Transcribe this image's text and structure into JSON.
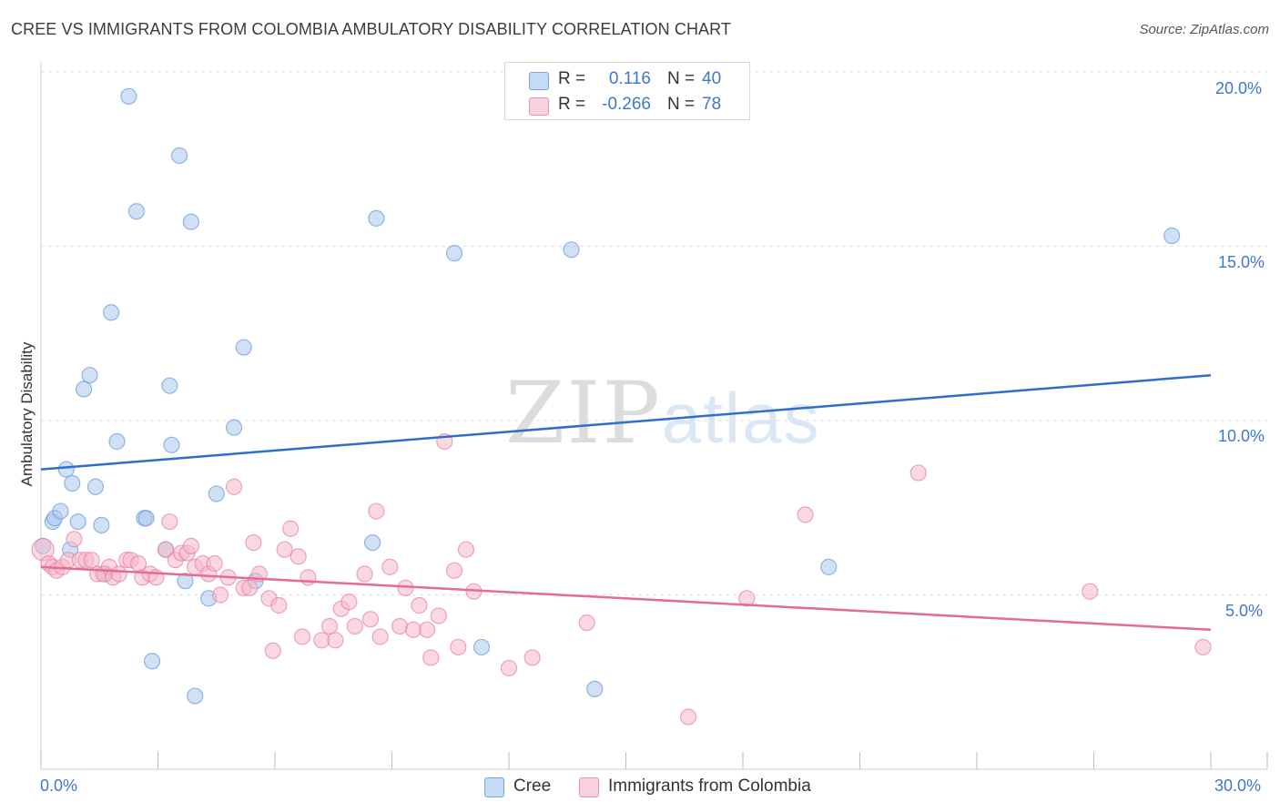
{
  "header": {
    "title": "CREE VS IMMIGRANTS FROM COLOMBIA AMBULATORY DISABILITY CORRELATION CHART",
    "source": "Source: ZipAtlas.com"
  },
  "watermark": {
    "zip": "ZIP",
    "atlas": "atlas"
  },
  "legend_top": {
    "rows": [
      {
        "r_label": "R =",
        "r_value": "0.116",
        "n_label": "N =",
        "n_value": "40",
        "color": "#a9c8ee"
      },
      {
        "r_label": "R =",
        "r_value": "-0.266",
        "n_label": "N =",
        "n_value": "78",
        "color": "#f5b8cb"
      }
    ]
  },
  "legend_bottom": {
    "items": [
      {
        "label": "Cree",
        "color": "#a9c8ee"
      },
      {
        "label": "Immigrants from Colombia",
        "color": "#f5b8cb"
      }
    ]
  },
  "axes": {
    "y_label": "Ambulatory Disability",
    "x_min_label": "0.0%",
    "x_max_label": "30.0%",
    "y_ticks": [
      "5.0%",
      "10.0%",
      "15.0%",
      "20.0%"
    ]
  },
  "chart_data": {
    "type": "scatter",
    "title": "CREE VS IMMIGRANTS FROM COLOMBIA AMBULATORY DISABILITY CORRELATION CHART",
    "xlabel": "",
    "ylabel": "Ambulatory Disability",
    "xlim": [
      0,
      30
    ],
    "ylim": [
      0,
      20.5
    ],
    "y_ticks": [
      5,
      10,
      15,
      20
    ],
    "grid": true,
    "legend_position": "top-center",
    "series": [
      {
        "name": "Cree",
        "color": "#6a9ad8",
        "fill": "#a9c8ee",
        "r": 0.116,
        "n": 40,
        "trend": {
          "x": [
            0,
            30
          ],
          "y": [
            8.6,
            11.3
          ]
        },
        "points": [
          [
            0.05,
            6.4
          ],
          [
            0.3,
            7.1
          ],
          [
            0.35,
            7.2
          ],
          [
            0.5,
            7.4
          ],
          [
            0.65,
            8.6
          ],
          [
            0.8,
            8.2
          ],
          [
            0.95,
            7.1
          ],
          [
            1.1,
            10.9
          ],
          [
            1.25,
            11.3
          ],
          [
            1.4,
            8.1
          ],
          [
            1.55,
            7.0
          ],
          [
            1.65,
            5.6
          ],
          [
            1.8,
            13.1
          ],
          [
            1.95,
            9.4
          ],
          [
            2.25,
            19.3
          ],
          [
            2.45,
            16.0
          ],
          [
            2.65,
            7.2
          ],
          [
            2.7,
            7.2
          ],
          [
            2.85,
            3.1
          ],
          [
            3.2,
            6.3
          ],
          [
            3.3,
            11.0
          ],
          [
            3.35,
            9.3
          ],
          [
            3.55,
            17.6
          ],
          [
            3.7,
            5.4
          ],
          [
            3.85,
            15.7
          ],
          [
            3.95,
            2.1
          ],
          [
            4.3,
            4.9
          ],
          [
            4.5,
            7.9
          ],
          [
            4.95,
            9.8
          ],
          [
            5.2,
            12.1
          ],
          [
            5.5,
            5.4
          ],
          [
            8.5,
            6.5
          ],
          [
            8.6,
            15.8
          ],
          [
            10.6,
            14.8
          ],
          [
            11.3,
            3.5
          ],
          [
            13.6,
            14.9
          ],
          [
            14.2,
            2.3
          ],
          [
            20.2,
            5.8
          ],
          [
            29.0,
            15.3
          ],
          [
            0.75,
            6.3
          ]
        ]
      },
      {
        "name": "Immigrants from Colombia",
        "color": "#e681a2",
        "fill": "#f5b8cb",
        "r": -0.266,
        "n": 78,
        "trend": {
          "x": [
            0,
            30
          ],
          "y": [
            5.8,
            4.0
          ]
        },
        "points": [
          [
            0.05,
            6.3
          ],
          [
            0.2,
            5.9
          ],
          [
            0.3,
            5.8
          ],
          [
            0.4,
            5.7
          ],
          [
            0.55,
            5.8
          ],
          [
            0.7,
            6.0
          ],
          [
            0.85,
            6.6
          ],
          [
            1.0,
            6.0
          ],
          [
            1.15,
            6.0
          ],
          [
            1.3,
            6.0
          ],
          [
            1.45,
            5.6
          ],
          [
            1.6,
            5.6
          ],
          [
            1.75,
            5.8
          ],
          [
            1.85,
            5.5
          ],
          [
            2.0,
            5.6
          ],
          [
            2.2,
            6.0
          ],
          [
            2.3,
            6.0
          ],
          [
            2.5,
            5.9
          ],
          [
            2.6,
            5.5
          ],
          [
            2.8,
            5.6
          ],
          [
            2.95,
            5.5
          ],
          [
            3.2,
            6.3
          ],
          [
            3.3,
            7.1
          ],
          [
            3.45,
            6.0
          ],
          [
            3.6,
            6.2
          ],
          [
            3.75,
            6.2
          ],
          [
            3.85,
            6.4
          ],
          [
            3.95,
            5.8
          ],
          [
            4.15,
            5.9
          ],
          [
            4.3,
            5.6
          ],
          [
            4.45,
            5.9
          ],
          [
            4.6,
            5.0
          ],
          [
            4.8,
            5.5
          ],
          [
            4.95,
            8.1
          ],
          [
            5.2,
            5.2
          ],
          [
            5.35,
            5.2
          ],
          [
            5.45,
            6.5
          ],
          [
            5.6,
            5.6
          ],
          [
            5.85,
            4.9
          ],
          [
            5.95,
            3.4
          ],
          [
            6.1,
            4.7
          ],
          [
            6.25,
            6.3
          ],
          [
            6.4,
            6.9
          ],
          [
            6.6,
            6.1
          ],
          [
            6.7,
            3.8
          ],
          [
            6.85,
            5.5
          ],
          [
            7.2,
            3.7
          ],
          [
            7.4,
            4.1
          ],
          [
            7.55,
            3.7
          ],
          [
            7.7,
            4.6
          ],
          [
            7.9,
            4.8
          ],
          [
            8.05,
            4.1
          ],
          [
            8.3,
            5.6
          ],
          [
            8.45,
            4.3
          ],
          [
            8.6,
            7.4
          ],
          [
            8.7,
            3.8
          ],
          [
            8.95,
            5.8
          ],
          [
            9.2,
            4.1
          ],
          [
            9.35,
            5.2
          ],
          [
            9.55,
            4.0
          ],
          [
            9.7,
            4.7
          ],
          [
            9.9,
            4.0
          ],
          [
            10.0,
            3.2
          ],
          [
            10.2,
            4.4
          ],
          [
            10.35,
            9.4
          ],
          [
            10.6,
            5.7
          ],
          [
            10.7,
            3.5
          ],
          [
            10.9,
            6.3
          ],
          [
            11.1,
            5.1
          ],
          [
            12.0,
            2.9
          ],
          [
            12.6,
            3.2
          ],
          [
            14.0,
            4.2
          ],
          [
            16.6,
            1.5
          ],
          [
            18.1,
            4.9
          ],
          [
            19.6,
            7.3
          ],
          [
            22.5,
            8.5
          ],
          [
            26.9,
            5.1
          ],
          [
            29.8,
            3.5
          ]
        ]
      }
    ]
  }
}
